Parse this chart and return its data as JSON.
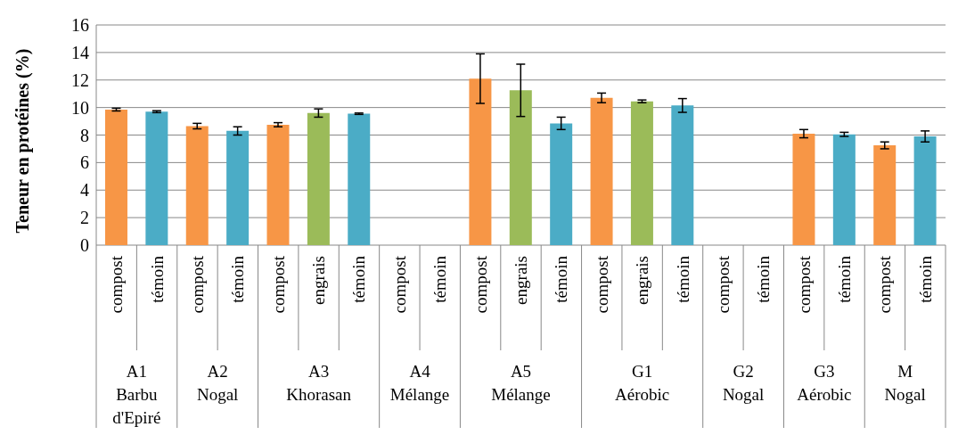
{
  "chart_data": {
    "type": "bar",
    "ylabel": "Teneur en protéines (%)",
    "categories": [
      "compost",
      "témoin",
      "compost",
      "témoin",
      "compost",
      "engrais",
      "témoin",
      "compost",
      "témoin",
      "compost",
      "engrais",
      "témoin",
      "compost",
      "engrais",
      "témoin",
      "compost",
      "témoin",
      "compost",
      "témoin",
      "compost",
      "témoin"
    ],
    "values": [
      9.85,
      9.7,
      8.65,
      8.3,
      8.75,
      9.6,
      9.55,
      null,
      null,
      12.1,
      11.25,
      8.85,
      10.7,
      10.45,
      10.15,
      null,
      null,
      8.1,
      8.05,
      7.25,
      7.9
    ],
    "errors": [
      0.1,
      0.07,
      0.2,
      0.3,
      0.15,
      0.3,
      0.05,
      null,
      null,
      1.8,
      1.9,
      0.45,
      0.35,
      0.1,
      0.5,
      null,
      null,
      0.3,
      0.15,
      0.25,
      0.4
    ],
    "colors": [
      "#f79646",
      "#4bacc6",
      "#f79646",
      "#4bacc6",
      "#f79646",
      "#9bbb59",
      "#4bacc6",
      "#f79646",
      "#4bacc6",
      "#f79646",
      "#9bbb59",
      "#4bacc6",
      "#f79646",
      "#9bbb59",
      "#4bacc6",
      "#f79646",
      "#4bacc6",
      "#f79646",
      "#4bacc6",
      "#f79646",
      "#4bacc6"
    ],
    "ylim": [
      0,
      16
    ],
    "yticks": [
      0,
      2,
      4,
      6,
      8,
      10,
      12,
      14,
      16
    ],
    "grid": "y",
    "annotations": [
      "A1 Barbu d'Epiré",
      "A2 Nogal",
      "A3 Khorasan",
      "A4 Mélange",
      "A5 Mélange",
      "G1 Aérobic",
      "G2 Nogal",
      "G3 Aérobic",
      "M Nogal"
    ]
  }
}
